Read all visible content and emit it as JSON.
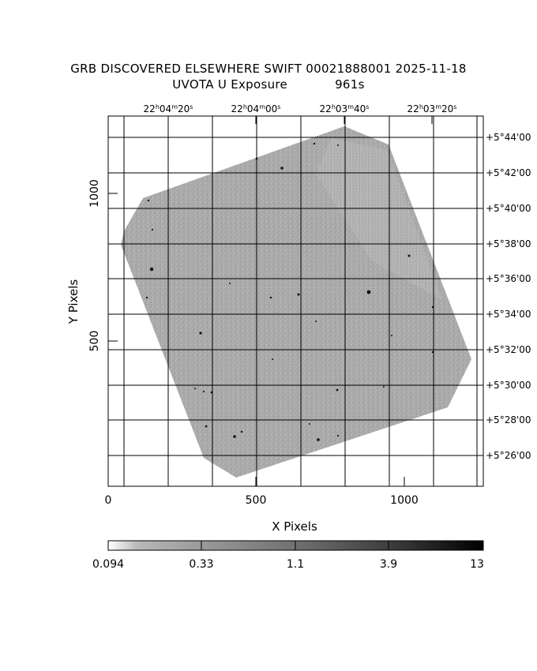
{
  "title": {
    "line1": "GRB DISCOVERED ELSEWHERE SWIFT 00021888001 2025-11-18",
    "line2_filter": "UVOTA U Exposure",
    "line2_exposure": "961s"
  },
  "axes": {
    "xlabel": "X Pixels",
    "ylabel": "Y Pixels",
    "x_ticks": [
      "0",
      "500",
      "1000"
    ],
    "y_ticks": [
      "500",
      "1000"
    ]
  },
  "ra_labels": [
    {
      "h": "22",
      "m": "04",
      "s": "20"
    },
    {
      "h": "22",
      "m": "04",
      "s": "00"
    },
    {
      "h": "22",
      "m": "03",
      "s": "40"
    },
    {
      "h": "22",
      "m": "03",
      "s": "20"
    }
  ],
  "dec_labels": [
    "+5°44'00",
    "+5°42'00",
    "+5°40'00",
    "+5°38'00",
    "+5°36'00",
    "+5°34'00",
    "+5°32'00",
    "+5°30'00",
    "+5°28'00",
    "+5°26'00"
  ],
  "colorbar": {
    "ticks": [
      "0.094",
      "0.33",
      "1.1",
      "3.9",
      "13"
    ]
  },
  "colors": {
    "image_fill": "#aaaaaa",
    "background": "#ffffff",
    "grid": "#000000"
  }
}
